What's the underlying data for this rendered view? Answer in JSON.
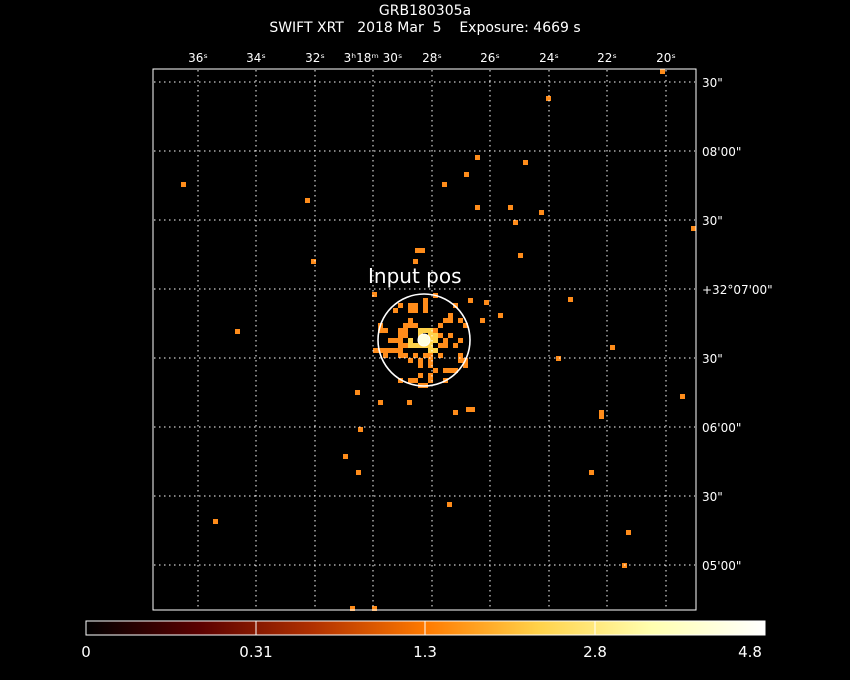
{
  "header": {
    "title": "GRB180305a",
    "instrument": "SWIFT XRT",
    "date": "2018 Mar  5",
    "exposure": "Exposure: 4669 s"
  },
  "axes": {
    "ra_ticks": [
      "36ˢ",
      "34ˢ",
      "32ˢ",
      "3ʰ18ᵐ 30ˢ",
      "28ˢ",
      "26ˢ",
      "24ˢ",
      "22ˢ",
      "20ˢ"
    ],
    "dec_ticks": [
      "30\"",
      "08'00\"",
      "30\"",
      "+32°07'00\"",
      "30\"",
      "06'00\"",
      "30\"",
      "05'00\""
    ]
  },
  "annotation": {
    "label": "Input pos"
  },
  "colorbar": {
    "labels": [
      "0",
      "0.31",
      "1.3",
      "2.8",
      "4.8"
    ],
    "gradient": [
      "#000000",
      "#5a0000",
      "#b03000",
      "#ff7a00",
      "#ffd24a",
      "#ffffb0",
      "#ffffff"
    ]
  },
  "colors": {
    "photon": "#ff8c1a",
    "bright": "#ffd24a",
    "grid": "#ffffff",
    "background": "#000000"
  },
  "chart_data": {
    "type": "heatmap",
    "title": "GRB180305a",
    "x_label_ticks": [
      "36s",
      "34s",
      "32s",
      "3h18m30s",
      "28s",
      "26s",
      "24s",
      "22s",
      "20s"
    ],
    "y_label_ticks": [
      "30\"",
      "08'00\"",
      "30\"",
      "+32°07'00\"",
      "30\"",
      "06'00\"",
      "30\"",
      "05'00\""
    ],
    "colorbar_range": [
      0,
      4.8
    ],
    "grid": true
  }
}
